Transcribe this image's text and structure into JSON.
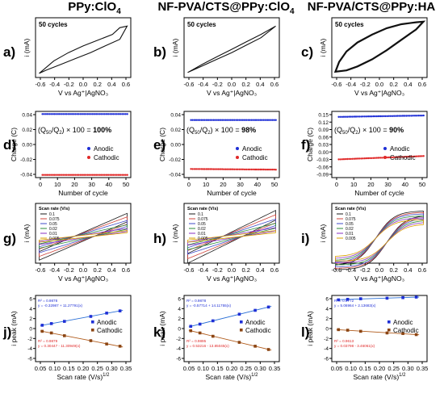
{
  "column_titles": [
    "PPy:ClO",
    "NF-PVA/CTS@PPy:ClO",
    "NF-PVA/CTS@PPy:HA"
  ],
  "column_title_subscripts": [
    "4",
    "4",
    ""
  ],
  "panel_labels": [
    "a)",
    "b)",
    "c)",
    "d)",
    "e)",
    "f)",
    "g)",
    "h)",
    "i)",
    "j)",
    "k)",
    "l)"
  ],
  "colors": {
    "anodic": "#1f2fd6",
    "cathodic": "#e02828",
    "fit_anodic": "#2a6fd6",
    "fit_cathodic": "#b05a1a"
  },
  "chart_data": [
    {
      "id": "a",
      "type": "line",
      "annotation": "50 cycles",
      "xlabel": "V vs Ag⁺|AgNO₃",
      "ylabel": "i (mA)",
      "xticks": [
        "-0.6",
        "-0.4",
        "-0.2",
        "0.0",
        "0.2",
        "0.4",
        "0.6"
      ],
      "xlim": [
        -0.65,
        0.65
      ],
      "ylim": [
        -3.2,
        4.0
      ],
      "series": [
        {
          "loop_upper": [
            [
              -0.6,
              -2.7
            ],
            [
              -0.4,
              -1.2
            ],
            [
              -0.2,
              -0.2
            ],
            [
              0.0,
              0.6
            ],
            [
              0.2,
              1.3
            ],
            [
              0.4,
              2.0
            ],
            [
              0.5,
              2.8
            ],
            [
              0.6,
              3.0
            ]
          ],
          "loop_lower": [
            [
              0.6,
              3.0
            ],
            [
              0.5,
              1.4
            ],
            [
              0.3,
              0.6
            ],
            [
              0.1,
              -0.2
            ],
            [
              -0.1,
              -0.9
            ],
            [
              -0.3,
              -1.6
            ],
            [
              -0.5,
              -2.3
            ],
            [
              -0.6,
              -2.7
            ]
          ]
        }
      ]
    },
    {
      "id": "b",
      "type": "line",
      "annotation": "50 cycles",
      "xlabel": "V vs Ag⁺|AgNO₃",
      "ylabel": "i (mA)",
      "xticks": [
        "-0.6",
        "-0.4",
        "-0.2",
        "0.0",
        "0.2",
        "0.4",
        "0.6"
      ],
      "xlim": [
        -0.65,
        0.65
      ],
      "ylim": [
        -3.2,
        4.0
      ],
      "series": [
        {
          "loop_upper": [
            [
              -0.6,
              -2.6
            ],
            [
              -0.4,
              -1.6
            ],
            [
              -0.2,
              -0.7
            ],
            [
              0.0,
              0.2
            ],
            [
              0.2,
              1.1
            ],
            [
              0.4,
              2.0
            ],
            [
              0.6,
              3.0
            ]
          ],
          "loop_lower": [
            [
              0.6,
              3.0
            ],
            [
              0.4,
              1.6
            ],
            [
              0.2,
              0.7
            ],
            [
              0.0,
              -0.2
            ],
            [
              -0.2,
              -1.0
            ],
            [
              -0.4,
              -1.8
            ],
            [
              -0.6,
              -2.6
            ]
          ]
        }
      ]
    },
    {
      "id": "c",
      "type": "line",
      "annotation": "50 cycles",
      "xlabel": "V vs Ag⁺|AgNO₃",
      "ylabel": "i (mA)",
      "xticks": [
        "-0.6",
        "-0.4",
        "-0.2",
        "0.0",
        "0.2",
        "0.4",
        "0.6"
      ],
      "xlim": [
        -0.65,
        0.65
      ],
      "ylim": [
        -3.2,
        6.0
      ],
      "series": [
        {
          "loop_upper": [
            [
              -0.6,
              -2.3
            ],
            [
              -0.55,
              -0.8
            ],
            [
              -0.45,
              0.8
            ],
            [
              -0.3,
              2.2
            ],
            [
              -0.1,
              3.4
            ],
            [
              0.1,
              4.4
            ],
            [
              0.3,
              5.0
            ],
            [
              0.5,
              5.3
            ],
            [
              0.6,
              5.4
            ]
          ],
          "loop_lower": [
            [
              0.6,
              5.4
            ],
            [
              0.5,
              4.2
            ],
            [
              0.3,
              2.6
            ],
            [
              0.1,
              1.0
            ],
            [
              -0.1,
              -0.4
            ],
            [
              -0.3,
              -1.5
            ],
            [
              -0.45,
              -2.1
            ],
            [
              -0.6,
              -2.3
            ]
          ]
        }
      ]
    },
    {
      "id": "d",
      "type": "scatter",
      "formula_result": "100%",
      "xlabel": "Number of cycle",
      "ylabel": "Charge (C)",
      "xticks": [
        "0",
        "10",
        "20",
        "30",
        "40",
        "50"
      ],
      "yticks": [
        "-0.04",
        "-0.02",
        "0.00",
        "0.02",
        "0.04"
      ],
      "xlim": [
        -3,
        52
      ],
      "ylim": [
        -0.05,
        0.05
      ],
      "legend": [
        "Anodic",
        "Cathodic"
      ],
      "legend_position": "center-right",
      "series": [
        {
          "name": "Anodic",
          "y_start": 0.046,
          "y_end": 0.046
        },
        {
          "name": "Cathodic",
          "y_start": -0.046,
          "y_end": -0.046
        }
      ],
      "x_range": [
        1,
        50
      ]
    },
    {
      "id": "e",
      "type": "scatter",
      "formula_result": "98%",
      "xlabel": "Number of cycle",
      "ylabel": "Charge (C)",
      "xticks": [
        "0",
        "10",
        "20",
        "30",
        "40",
        "50"
      ],
      "yticks": [
        "-0.04",
        "-0.02",
        "0.00",
        "0.02",
        "0.04"
      ],
      "xlim": [
        -3,
        52
      ],
      "ylim": [
        -0.05,
        0.05
      ],
      "legend": [
        "Anodic",
        "Cathodic"
      ],
      "legend_position": "center-right",
      "series": [
        {
          "name": "Anodic",
          "y_start": 0.037,
          "y_end": 0.037
        },
        {
          "name": "Cathodic",
          "y_start": -0.037,
          "y_end": -0.038
        }
      ],
      "x_range": [
        1,
        50
      ]
    },
    {
      "id": "f",
      "type": "scatter",
      "formula_result": "90%",
      "xlabel": "Number of cycle",
      "ylabel": "Charge (C)",
      "xticks": [
        "0",
        "10",
        "20",
        "30",
        "40",
        "50"
      ],
      "yticks": [
        "-0.09",
        "-0.06",
        "-0.03",
        "0.00",
        "0.03",
        "0.06",
        "0.09",
        "0.12",
        "0.15"
      ],
      "xlim": [
        -3,
        52
      ],
      "ylim": [
        -0.09,
        0.15
      ],
      "legend": [
        "Anodic",
        "Cathodic"
      ],
      "legend_position": "center-right",
      "series": [
        {
          "name": "Anodic",
          "y_start": 0.13,
          "y_end": 0.135
        },
        {
          "name": "Cathodic",
          "y_start": -0.024,
          "y_end": -0.012
        }
      ],
      "x_range": [
        1,
        50
      ]
    },
    {
      "id": "g",
      "type": "line",
      "legend_title": "Scan rate (V/s)",
      "legend": [
        "0.1",
        "0.075",
        "0.05",
        "0.02",
        "0.01",
        "0.005"
      ],
      "series_colors": [
        "#1a1a1a",
        "#d0453c",
        "#3f4bc8",
        "#2e8b3a",
        "#8a2fc0",
        "#d9a000"
      ],
      "amplitudes": [
        3.2,
        2.7,
        2.2,
        1.6,
        1.1,
        0.8
      ],
      "xlabel": "V vs Ag⁺|AgNO₃",
      "ylabel": "i (mA)",
      "xticks": [
        "-0.6",
        "-0.4",
        "-0.2",
        "0.0",
        "0.2",
        "0.4",
        "0.6"
      ],
      "xlim": [
        -0.65,
        0.65
      ],
      "ylim": [
        -4.5,
        5.5
      ]
    },
    {
      "id": "h",
      "type": "line",
      "legend_title": "Scan rate (V/s)",
      "legend": [
        "0.1",
        "0.075",
        "0.05",
        "0.02",
        "0.01",
        "0.005"
      ],
      "series_colors": [
        "#1a1a1a",
        "#d0453c",
        "#3f4bc8",
        "#2e8b3a",
        "#8a2fc0",
        "#d9a000"
      ],
      "amplitudes": [
        3.6,
        3.0,
        2.4,
        1.8,
        1.2,
        0.8
      ],
      "xlabel": "V vs Ag⁺|AgNO₃",
      "ylabel": "i (mA)",
      "xticks": [
        "-0.6",
        "-0.4",
        "-0.2",
        "0.0",
        "0.2",
        "0.4",
        "0.6"
      ],
      "xlim": [
        -0.65,
        0.65
      ],
      "ylim": [
        -4.5,
        5.5
      ]
    },
    {
      "id": "i",
      "type": "line",
      "legend_title": "Scan rate (V/s)",
      "legend": [
        "0.1",
        "0.075",
        "0.05",
        "0.02",
        "0.01",
        "0.005"
      ],
      "series_colors": [
        "#1a1a1a",
        "#d0453c",
        "#3f4bc8",
        "#2e8b3a",
        "#8a2fc0",
        "#d9a000"
      ],
      "amplitudes": [
        5.6,
        5.3,
        5.0,
        4.6,
        4.2,
        3.8
      ],
      "xlabel": "V vs Ag⁺|AgNO₃",
      "ylabel": "i (mA)",
      "xticks": [
        "-0.6",
        "-0.4",
        "-0.2",
        "0.0",
        "0.2",
        "0.4",
        "0.6"
      ],
      "xlim": [
        -0.65,
        0.65
      ],
      "ylim": [
        -4.0,
        7.0
      ]
    },
    {
      "id": "j",
      "type": "scatter",
      "xlabel": "Scan rate (V/s)",
      "xlabel_sup": "1/2",
      "ylabel": "i peak (mA)",
      "xticks": [
        "0.05",
        "0.10",
        "0.15",
        "0.20",
        "0.25",
        "0.30",
        "0.35"
      ],
      "yticks": [
        "-6",
        "-4",
        "-2",
        "0",
        "2",
        "4",
        "6"
      ],
      "xlim": [
        0.05,
        0.35
      ],
      "ylim": [
        -6,
        6
      ],
      "legend": [
        "Anodic",
        "Cathodic"
      ],
      "annotations": [
        "R² = 0.9878",
        "y = -0.32987 + 11.27791(x)",
        "R² = 0.9879",
        "y = 0.30447 - 11.30949(x)"
      ],
      "x": [
        0.071,
        0.1,
        0.141,
        0.224,
        0.274,
        0.316
      ],
      "series": [
        {
          "name": "Anodic",
          "values": [
            0.6,
            0.9,
            1.3,
            2.2,
            2.8,
            3.2
          ]
        },
        {
          "name": "Cathodic",
          "values": [
            -0.5,
            -0.8,
            -1.3,
            -2.2,
            -2.8,
            -3.2
          ]
        }
      ]
    },
    {
      "id": "k",
      "type": "scatter",
      "xlabel": "Scan rate (V/s)",
      "xlabel_sup": "1/2",
      "ylabel": "i peak (mA)",
      "xticks": [
        "0.05",
        "0.10",
        "0.15",
        "0.20",
        "0.25",
        "0.30",
        "0.35"
      ],
      "yticks": [
        "-6",
        "-4",
        "-2",
        "0",
        "2",
        "4",
        "6"
      ],
      "xlim": [
        0.05,
        0.35
      ],
      "ylim": [
        -6,
        6
      ],
      "legend": [
        "Anodic",
        "Cathodic"
      ],
      "annotations": [
        "R² = 0.9878",
        "y = -0.57714 + 14.11755(x)",
        "R² = 0.9895",
        "y = 0.53216 - 13.85045(x)"
      ],
      "x": [
        0.071,
        0.1,
        0.141,
        0.224,
        0.274,
        0.316
      ],
      "series": [
        {
          "name": "Anodic",
          "values": [
            0.4,
            0.8,
            1.4,
            2.6,
            3.3,
            3.9
          ]
        },
        {
          "name": "Cathodic",
          "values": [
            -0.4,
            -0.8,
            -1.4,
            -2.5,
            -3.2,
            -3.8
          ]
        }
      ]
    },
    {
      "id": "l",
      "type": "scatter",
      "xlabel": "Scan rate (V/s)",
      "xlabel_sup": "1/2",
      "ylabel": "i peak (mA)",
      "xticks": [
        "0.05",
        "0.10",
        "0.15",
        "0.20",
        "0.25",
        "0.30",
        "0.35"
      ],
      "yticks": [
        "-6",
        "-4",
        "-2",
        "0",
        "2",
        "4",
        "6"
      ],
      "xlim": [
        0.05,
        0.35
      ],
      "ylim": [
        -6,
        6
      ],
      "legend": [
        "Anodic",
        "Cathodic"
      ],
      "annotations": [
        "R² = 0.9772",
        "y = 5.06964 + 2.13683(x)",
        "R² = 0.9613",
        "y = 0.03798 - 3.46061(x)"
      ],
      "x": [
        0.071,
        0.1,
        0.141,
        0.224,
        0.274,
        0.316
      ],
      "series": [
        {
          "name": "Anodic",
          "values": [
            5.2,
            5.3,
            5.4,
            5.5,
            5.6,
            5.7
          ]
        },
        {
          "name": "Cathodic",
          "values": [
            -0.2,
            -0.3,
            -0.5,
            -0.8,
            -0.9,
            -1.1
          ]
        }
      ]
    }
  ]
}
